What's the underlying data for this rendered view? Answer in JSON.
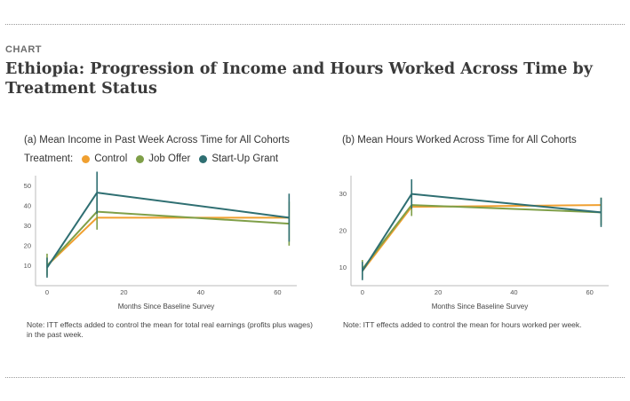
{
  "kicker": "CHART",
  "title": "Ethiopia: Progression of Income and Hours Worked Across Time by Treatment Status",
  "legend": {
    "label": "Treatment:",
    "items": [
      {
        "name": "Control",
        "color": "#f0a030"
      },
      {
        "name": "Job Offer",
        "color": "#7f9f48"
      },
      {
        "name": "Start-Up Grant",
        "color": "#2f6f72"
      }
    ]
  },
  "chart_data": [
    {
      "type": "line",
      "title": "(a) Mean Income in Past Week Across Time for All Cohorts",
      "xlabel": "Months Since Baseline Survey",
      "ylabel": "",
      "xlim": [
        -3,
        65
      ],
      "ylim": [
        0,
        55
      ],
      "xticks": [
        0,
        20,
        40,
        60
      ],
      "yticks": [
        10,
        20,
        30,
        40,
        50
      ],
      "grid": false,
      "legend_position": "top-left",
      "note": "Note: ITT effects added to control the mean for total real earnings (profits plus wages) in the past week.",
      "x": [
        0,
        13,
        63
      ],
      "series": [
        {
          "name": "Control",
          "color": "#f0a030",
          "values": [
            10,
            34,
            34
          ],
          "ci_low": null,
          "ci_high": null
        },
        {
          "name": "Job Offer",
          "color": "#7f9f48",
          "values": [
            10,
            37,
            31
          ],
          "ci_low": [
            5,
            28,
            20
          ],
          "ci_high": [
            16,
            44,
            42
          ]
        },
        {
          "name": "Start-Up Grant",
          "color": "#2f6f72",
          "values": [
            9,
            46.5,
            34
          ],
          "ci_low": [
            4,
            36,
            22
          ],
          "ci_high": [
            14,
            57,
            46
          ]
        }
      ]
    },
    {
      "type": "line",
      "title": "(b) Mean Hours Worked Across Time for All Cohorts",
      "xlabel": "Months Since Baseline Survey",
      "ylabel": "",
      "xlim": [
        -3,
        65
      ],
      "ylim": [
        5,
        35
      ],
      "xticks": [
        0,
        20,
        40,
        60
      ],
      "yticks": [
        10,
        20,
        30
      ],
      "grid": false,
      "legend_position": "none",
      "note": "Note: ITT effects added to control the mean for hours worked per week.",
      "x": [
        0,
        13,
        63
      ],
      "series": [
        {
          "name": "Control",
          "color": "#f0a030",
          "values": [
            9,
            26.5,
            27
          ],
          "ci_low": null,
          "ci_high": null
        },
        {
          "name": "Job Offer",
          "color": "#7f9f48",
          "values": [
            9.5,
            27,
            25
          ],
          "ci_low": [
            7,
            24,
            21.5
          ],
          "ci_high": [
            12,
            31,
            29
          ]
        },
        {
          "name": "Start-Up Grant",
          "color": "#2f6f72",
          "values": [
            9,
            30,
            25
          ],
          "ci_low": [
            6.5,
            26,
            21
          ],
          "ci_high": [
            11.5,
            34,
            29
          ]
        }
      ]
    }
  ]
}
